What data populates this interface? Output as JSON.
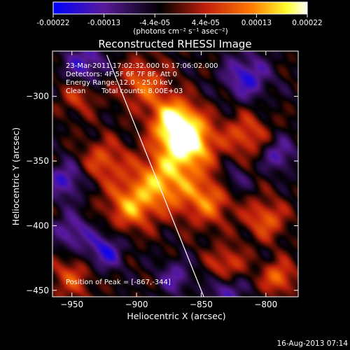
{
  "colorbar": {
    "ticks": [
      "-0.00022",
      "-0.00013",
      "-4.4e-05",
      "4.4e-05",
      "0.00013",
      "0.00022"
    ],
    "units": "(photons cm⁻² s⁻¹ asec⁻²)"
  },
  "chart_data": {
    "type": "heatmap",
    "title": "Reconstructed RHESSI Image",
    "xlabel": "Heliocentric X (arcsec)",
    "ylabel": "Heliocentric Y (arcsec)",
    "xlim": [
      -965,
      -775
    ],
    "ylim": [
      -455,
      -265
    ],
    "x_ticks": [
      -950,
      -900,
      -850,
      -800
    ],
    "y_ticks": [
      -300,
      -350,
      -400,
      -450
    ],
    "color_range": [
      -0.00022,
      0.00022
    ],
    "colormap": [
      "#0000ff",
      "#5a1a9a",
      "#000000",
      "#c0200c",
      "#ff7a00",
      "#ffff30",
      "#ffffff"
    ],
    "peak_position": [
      -867,
      -344
    ],
    "limb_line": {
      "x": [
        -923,
        -848
      ],
      "y": [
        -268,
        -455
      ]
    },
    "sources": [
      {
        "x": -860,
        "y": -335,
        "sigma": 14,
        "amp": 1.0
      },
      {
        "x": -872,
        "y": -318,
        "sigma": 12,
        "amp": 0.8
      },
      {
        "x": -880,
        "y": -365,
        "sigma": 16,
        "amp": 0.7
      },
      {
        "x": -905,
        "y": -385,
        "sigma": 13,
        "amp": 0.6
      },
      {
        "x": -845,
        "y": -380,
        "sigma": 14,
        "amp": 0.55
      },
      {
        "x": -925,
        "y": -350,
        "sigma": 12,
        "amp": 0.45
      },
      {
        "x": -895,
        "y": -290,
        "sigma": 13,
        "amp": 0.5
      },
      {
        "x": -815,
        "y": -330,
        "sigma": 12,
        "amp": 0.45
      },
      {
        "x": -800,
        "y": -395,
        "sigma": 11,
        "amp": 0.5
      },
      {
        "x": -830,
        "y": -430,
        "sigma": 10,
        "amp": 0.45
      },
      {
        "x": -790,
        "y": -440,
        "sigma": 9,
        "amp": 0.55
      },
      {
        "x": -945,
        "y": -300,
        "sigma": 10,
        "amp": 0.35
      },
      {
        "x": -950,
        "y": -440,
        "sigma": 12,
        "amp": 0.4
      },
      {
        "x": -925,
        "y": -420,
        "sigma": 10,
        "amp": -0.55
      },
      {
        "x": -955,
        "y": -365,
        "sigma": 10,
        "amp": -0.5
      },
      {
        "x": -940,
        "y": -275,
        "sigma": 11,
        "amp": -0.5
      },
      {
        "x": -815,
        "y": -285,
        "sigma": 12,
        "amp": -0.55
      },
      {
        "x": -790,
        "y": -345,
        "sigma": 9,
        "amp": -0.45
      },
      {
        "x": -830,
        "y": -450,
        "sigma": 9,
        "amp": -0.45
      },
      {
        "x": -870,
        "y": -440,
        "sigma": 9,
        "amp": -0.4
      },
      {
        "x": -950,
        "y": -405,
        "sigma": 10,
        "amp": -0.45
      },
      {
        "x": -825,
        "y": -365,
        "sigma": 8,
        "amp": -0.35
      }
    ]
  },
  "annotations": {
    "time_range": "23-Mar-2011 17:02:32.000 to 17:06:02.000",
    "detectors": "Detectors: 4F 5F 6F 7F 8F, Att 0",
    "energy": "Energy Range: 12.0 - 25.0 keV",
    "method": "Clean",
    "counts": "Total counts: 8.00E+03",
    "peak": "Position of Peak = [-867,-344]"
  },
  "footer_date": "16-Aug-2013 07:14"
}
